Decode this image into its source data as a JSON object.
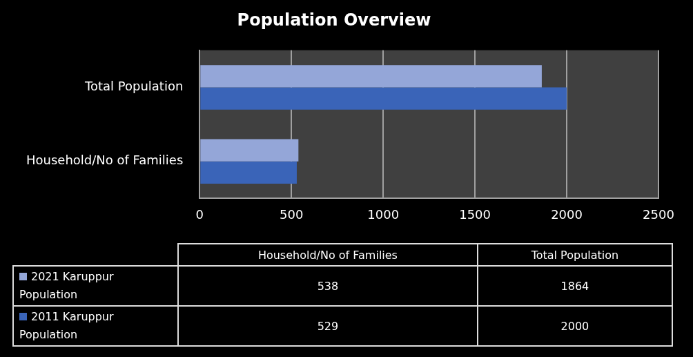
{
  "chart_data": {
    "type": "bar",
    "orientation": "horizontal",
    "title": "Population Overview",
    "categories": [
      "Total Population",
      "Household/No of Families"
    ],
    "series": [
      {
        "name": "2021 Karuppur Population",
        "color": "#94a6d8",
        "values": [
          1864,
          538
        ]
      },
      {
        "name": "2011 Karuppur Population",
        "color": "#3a64b8",
        "values": [
          2000,
          529
        ]
      }
    ],
    "xlim": [
      0,
      2500
    ],
    "xticks": [
      0,
      500,
      1000,
      1500,
      2000,
      2500
    ],
    "grid": "x",
    "legend": "bottom",
    "annotations": [
      "538",
      "1864",
      "529",
      "2000"
    ]
  }
}
